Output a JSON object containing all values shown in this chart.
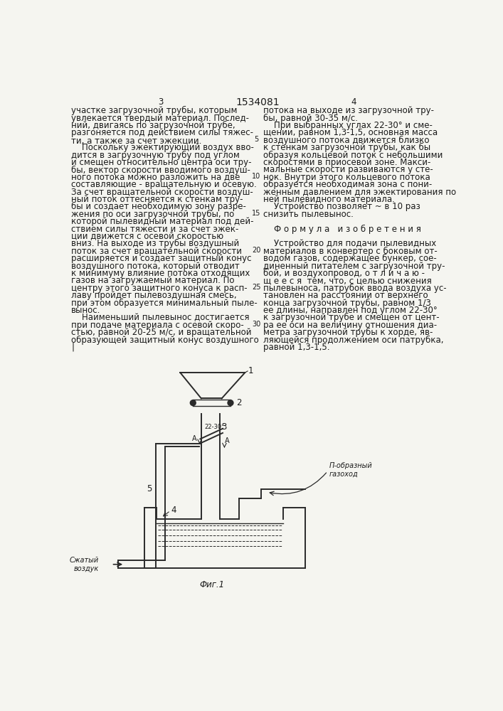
{
  "title": "1534081",
  "page_left": "3",
  "page_right": "4",
  "fig_label": "Фиг.1",
  "label_compressed_air": "Сжатый\nвоздук",
  "label_p_duct": "П-образный\nгазоход",
  "label_angle": "22-30°",
  "background_color": "#f5f5f0",
  "line_color": "#2a2a2a",
  "text_color": "#1a1a1a",
  "font_size_main": 8.5,
  "font_size_small": 7.0,
  "font_size_title": 10,
  "line_numbers": [
    "5",
    "10",
    "15",
    "20",
    "25",
    "30"
  ],
  "left_col_lines": [
    "участке загрузочной трубы, которым",
    "увлекается твердый материал. Послед-",
    "ний, двигаясь по загрузочной трубе,",
    "разгоняется под действием силы тяжес-",
    "ти, а также за счет эжекции.",
    "    Поскольку эжектирующий воздух вво-",
    "дится в загрузочную трубу под углом",
    "и смещен относительно центра оси тру-",
    "бы, вектор скорости вводимого воздуш-",
    "ного потока можно разложить на две",
    "составляющие - вращательную и осевую.",
    "За счет вращательной скорости воздуш-",
    "ный поток оттесняется к стенкам тру-",
    "бы и создает необходимую зону разре-",
    "жения по оси загрузочной трубы, по",
    "которой пылевидный материал под дей-",
    "ствием силы тяжести и за счет эжек-",
    "ции движется с осевой скоростью",
    "вниз. На выходе из трубы воздушный",
    "поток за счет вращательной скорости",
    "расширяется и создает защитный конус",
    "воздушного потока, который отводит",
    "к минимуму влияние потока отходящих",
    "газов на загружаемый материал. По",
    "центру этого защитного конуса к расп-",
    "лаву пройдет пылевоздушная смесь,",
    "при этом образуется минимальный пыле-",
    "вынос.",
    "    Наименьший пылевынос достигается",
    "при подаче материала с осевой скоро-",
    "стью, равной 20-25 м/с, и вращательной",
    "образующей защитный конус воздушного",
    "|"
  ],
  "right_col_lines": [
    "потока на выходе из загрузочной тру-",
    "бы, равной 30-35 м/с.",
    "    При выбранных углах 22-30° и сме-",
    "щении, равном 1,3-1,5, основная масса",
    "воздушного потока движется близко",
    "к стенкам загрузочной трубы, как бы",
    "образуя кольцевой поток с небольшими",
    "скоростями в приосевой зоне. Макси-",
    "мальные скорости развиваются у сте-",
    "нок. Внутри этого кольцевого потока",
    "образуется необходимая зона с пони-",
    "женным давлением для эжектирования по",
    "ней пылевидного материала.",
    "    Устройство позволяет ~ в 10 раз",
    "снизить пылевынос.",
    "",
    "    Ф о р м у л а   и з о б р е т е н и я",
    "",
    "    Устройство для подачи пылевидных",
    "материалов в конвертер с боковым от-",
    "водом газов, содержащее бункер, сое-",
    "диненный питателем с загрузочной тру-",
    "бой, и воздухопровод, о т л и ч а ю -",
    "щ е е с я  тем, что, с целью снижения",
    "пылевыноса, патрубок ввода воздуха ус-",
    "тановлен на расстоянии от верхнего",
    "конца загрузочной трубы, равном 1/3",
    "ее длины, направлен под углом 22-30°",
    "к загрузочной трубе и смещен от цент-",
    "ра ее оси на величину отношения диа-",
    "метра загрузочной трубы к хорде, яв-",
    "ляющейся продолжением оси патрубка,",
    "равной 1,3-1,5."
  ]
}
